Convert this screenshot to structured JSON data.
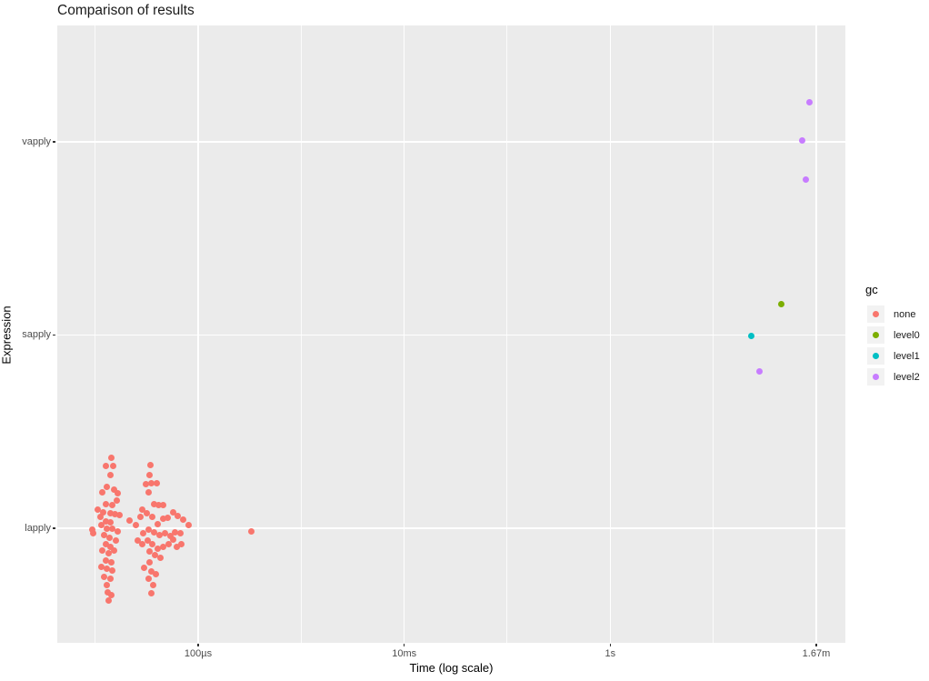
{
  "colors": {
    "panel_background": "#ebebeb",
    "gridline": "#ffffff",
    "tick_text": "#4d4d4d",
    "axis_text": "#000000",
    "legend_key_background": "#f2f2f2",
    "palette": {
      "none": "#F8766D",
      "level0": "#7CAE00",
      "level1": "#00BFC4",
      "level2": "#C77CFF"
    }
  },
  "chart_data": {
    "type": "scatter",
    "title": "Comparison of results",
    "xlabel": "Time (log scale)",
    "ylabel": "Expression",
    "x_scale": "log10 seconds",
    "x_range_log10_s": [
      -5.37,
      2.28
    ],
    "grid": "major and minor vertical, major horizontal, white on gray",
    "x_ticks": [
      {
        "label": "100µs",
        "log10_s": -4
      },
      {
        "label": "10ms",
        "log10_s": -2
      },
      {
        "label": "1s",
        "log10_s": 0
      },
      {
        "label": "1.67m",
        "log10_s": 2
      }
    ],
    "x_minor_log10_s": [
      -5,
      -3,
      -1,
      1
    ],
    "y_categories": [
      "lapply",
      "sapply",
      "vapply"
    ],
    "legend": {
      "title": "gc",
      "position": "right",
      "entries": [
        {
          "label": "none",
          "color": "#F8766D"
        },
        {
          "label": "level0",
          "color": "#7CAE00"
        },
        {
          "label": "level1",
          "color": "#00BFC4"
        },
        {
          "label": "level2",
          "color": "#C77CFF"
        }
      ]
    },
    "point_format": "[expression, time_microseconds, jitter_offset_px]",
    "series": [
      {
        "name": "none",
        "color": "#F8766D",
        "points": [
          [
            "lapply",
            14.4,
            -78
          ],
          [
            "lapply",
            12.7,
            -69
          ],
          [
            "lapply",
            15.0,
            -69
          ],
          [
            "lapply",
            14.1,
            -59
          ],
          [
            "lapply",
            13.0,
            -46
          ],
          [
            "lapply",
            15.3,
            -43
          ],
          [
            "lapply",
            11.8,
            -40
          ],
          [
            "lapply",
            16.6,
            -39
          ],
          [
            "lapply",
            12.7,
            -27
          ],
          [
            "lapply",
            14.7,
            -26
          ],
          [
            "lapply",
            16.2,
            -31
          ],
          [
            "lapply",
            10.6,
            -21
          ],
          [
            "lapply",
            12.0,
            -18
          ],
          [
            "lapply",
            14.1,
            -17
          ],
          [
            "lapply",
            15.6,
            -16
          ],
          [
            "lapply",
            17.2,
            -15
          ],
          [
            "lapply",
            11.3,
            -13
          ],
          [
            "lapply",
            12.7,
            -8
          ],
          [
            "lapply",
            14.1,
            -7
          ],
          [
            "lapply",
            11.5,
            -4
          ],
          [
            "lapply",
            13.0,
            0
          ],
          [
            "lapply",
            14.7,
            0
          ],
          [
            "lapply",
            16.6,
            3
          ],
          [
            "lapply",
            9.4,
            1
          ],
          [
            "lapply",
            9.6,
            5
          ],
          [
            "lapply",
            12.2,
            7
          ],
          [
            "lapply",
            13.8,
            10
          ],
          [
            "lapply",
            15.9,
            13
          ],
          [
            "lapply",
            12.7,
            17
          ],
          [
            "lapply",
            14.1,
            20
          ],
          [
            "lapply",
            11.8,
            24
          ],
          [
            "lapply",
            13.5,
            27
          ],
          [
            "lapply",
            15.3,
            24
          ],
          [
            "lapply",
            12.7,
            35
          ],
          [
            "lapply",
            14.4,
            37
          ],
          [
            "lapply",
            11.5,
            42
          ],
          [
            "lapply",
            13.0,
            44
          ],
          [
            "lapply",
            14.7,
            46
          ],
          [
            "lapply",
            12.2,
            53
          ],
          [
            "lapply",
            14.1,
            55
          ],
          [
            "lapply",
            13.0,
            62
          ],
          [
            "lapply",
            13.3,
            70
          ],
          [
            "lapply",
            14.4,
            73
          ],
          [
            "lapply",
            13.5,
            79
          ],
          [
            "lapply",
            34.2,
            -70
          ],
          [
            "lapply",
            33.5,
            -59
          ],
          [
            "lapply",
            30.9,
            -49
          ],
          [
            "lapply",
            34.9,
            -50
          ],
          [
            "lapply",
            39.3,
            -50
          ],
          [
            "lapply",
            32.9,
            -40
          ],
          [
            "lapply",
            37.1,
            -27
          ],
          [
            "lapply",
            41.0,
            -26
          ],
          [
            "lapply",
            45.3,
            -26
          ],
          [
            "lapply",
            28.6,
            -21
          ],
          [
            "lapply",
            31.6,
            -17
          ],
          [
            "lapply",
            27.4,
            -13
          ],
          [
            "lapply",
            35.6,
            -13
          ],
          [
            "lapply",
            40.1,
            -5
          ],
          [
            "lapply",
            45.3,
            -11
          ],
          [
            "lapply",
            50.3,
            -12
          ],
          [
            "lapply",
            56.9,
            -18
          ],
          [
            "lapply",
            62.9,
            -14
          ],
          [
            "lapply",
            70.9,
            -10
          ],
          [
            "lapply",
            80.0,
            -4
          ],
          [
            "lapply",
            21.5,
            -9
          ],
          [
            "lapply",
            24.8,
            -4
          ],
          [
            "lapply",
            29.1,
            5
          ],
          [
            "lapply",
            25.8,
            13
          ],
          [
            "lapply",
            28.6,
            17
          ],
          [
            "lapply",
            32.9,
            1
          ],
          [
            "lapply",
            37.1,
            4
          ],
          [
            "lapply",
            41.8,
            7
          ],
          [
            "lapply",
            47.2,
            5
          ],
          [
            "lapply",
            53.4,
            8
          ],
          [
            "lapply",
            59.2,
            4
          ],
          [
            "lapply",
            66.8,
            5
          ],
          [
            "lapply",
            61.7,
            20
          ],
          [
            "lapply",
            68.2,
            17
          ],
          [
            "lapply",
            32.2,
            13
          ],
          [
            "lapply",
            35.6,
            17
          ],
          [
            "lapply",
            40.1,
            22
          ],
          [
            "lapply",
            45.3,
            20
          ],
          [
            "lapply",
            51.3,
            17
          ],
          [
            "lapply",
            56.9,
            12
          ],
          [
            "lapply",
            33.5,
            25
          ],
          [
            "lapply",
            37.8,
            29
          ],
          [
            "lapply",
            42.6,
            32
          ],
          [
            "lapply",
            33.5,
            37
          ],
          [
            "lapply",
            29.7,
            43
          ],
          [
            "lapply",
            34.9,
            47
          ],
          [
            "lapply",
            38.6,
            50
          ],
          [
            "lapply",
            32.9,
            55
          ],
          [
            "lapply",
            36.3,
            62
          ],
          [
            "lapply",
            34.9,
            71
          ],
          [
            "lapply",
            325,
            3
          ]
        ]
      },
      {
        "name": "level0",
        "color": "#7CAE00",
        "points": [
          [
            "sapply",
            45400000.0,
            -34
          ]
        ]
      },
      {
        "name": "level1",
        "color": "#00BFC4",
        "points": [
          [
            "sapply",
            23200000.0,
            1
          ]
        ]
      },
      {
        "name": "level2",
        "color": "#C77CFF",
        "points": [
          [
            "sapply",
            27900000.0,
            40
          ],
          [
            "vapply",
            86700000.0,
            -44
          ],
          [
            "vapply",
            72300000.0,
            -2
          ],
          [
            "vapply",
            80000000.0,
            41
          ]
        ]
      }
    ]
  }
}
